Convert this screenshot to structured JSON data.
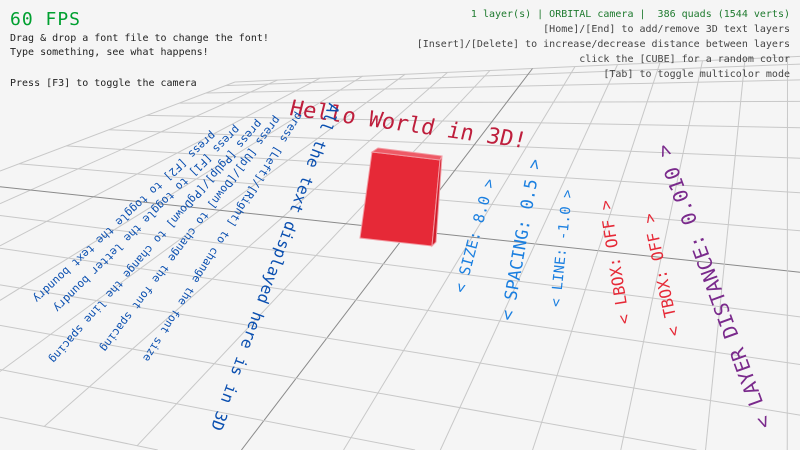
{
  "hud": {
    "fps": "60 FPS",
    "lines": [
      "Drag & drop a font file to change the font!",
      "Type something, see what happens!",
      "Press [F3] to toggle the camera"
    ],
    "status": "1 layer(s) | ORBITAL camera |  386 quads (1544 verts)",
    "help": [
      "[Home]/[End] to add/remove 3D text layers",
      "[Insert]/[Delete] to increase/decrease distance between layers",
      "click the [CUBE] for a random color",
      "[Tab] to toggle multicolor mode"
    ]
  },
  "scene": {
    "hello": "Hello World in 3D!",
    "info": [
      "All the text displayed here is in 3D",
      "press [Left]/[Right] to change the font size",
      "press [Up]/[Down] to change the font spacing",
      "press [PgUp]/[PgDown] to change the line spacing",
      "press [F1] to toggle the letter boundry",
      "press [F2] to toggle the text boundry"
    ],
    "options": {
      "size": "< SIZE: 8.0 >",
      "spacing": "< SPACING: 0.5 >",
      "line": "< LINE: -1.0 >",
      "lbox": "< LBOX: OFF >",
      "tbox": "< TBOX: OFF >",
      "layer_distance": "< LAYER DISTANCE: 0.010 >"
    }
  },
  "colors": {
    "fps": "#00a030",
    "status": "#1e7a2e",
    "cube": "#e62937",
    "hello": "#be1e3c",
    "info": "#0a4fb0",
    "option_blue": "#1a7fe0",
    "option_red": "#e62937",
    "option_purple": "#7a2a8c"
  }
}
